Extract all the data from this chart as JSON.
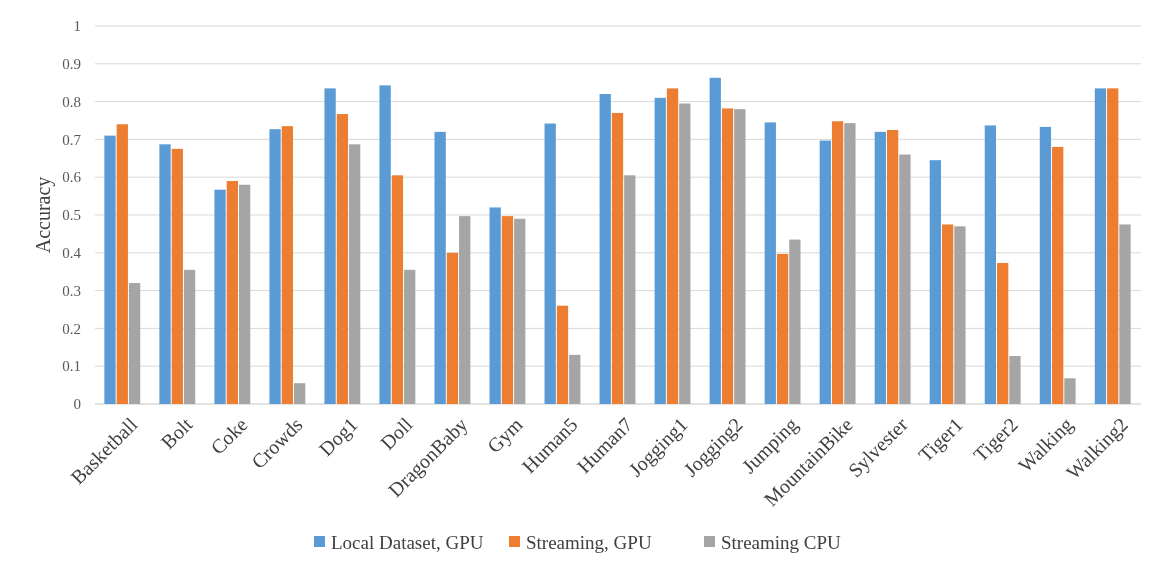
{
  "chart_data": {
    "type": "bar",
    "ylabel": "Accuracy",
    "categories": [
      "Basketball",
      "Bolt",
      "Coke",
      "Crowds",
      "Dog1",
      "Doll",
      "DragonBaby",
      "Gym",
      "Human5",
      "Human7",
      "Jogging1",
      "Jogging2",
      "Jumping",
      "MountainBike",
      "Sylvester",
      "Tiger1",
      "Tiger2",
      "Walking",
      "Walking2"
    ],
    "series": [
      {
        "name": "Local Dataset, GPU",
        "color": "#5b9bd5",
        "values": [
          0.71,
          0.687,
          0.567,
          0.727,
          0.835,
          0.843,
          0.72,
          0.52,
          0.742,
          0.82,
          0.81,
          0.863,
          0.745,
          0.697,
          0.72,
          0.645,
          0.737,
          0.733,
          0.835
        ]
      },
      {
        "name": "Streaming, GPU",
        "color": "#ed7d31",
        "values": [
          0.74,
          0.675,
          0.59,
          0.735,
          0.767,
          0.605,
          0.4,
          0.497,
          0.26,
          0.77,
          0.835,
          0.782,
          0.397,
          0.748,
          0.725,
          0.475,
          0.373,
          0.68,
          0.835
        ]
      },
      {
        "name": "Streaming CPU",
        "color": "#a5a5a5",
        "values": [
          0.32,
          0.355,
          0.58,
          0.055,
          0.687,
          0.355,
          0.497,
          0.49,
          0.13,
          0.605,
          0.795,
          0.78,
          0.435,
          0.743,
          0.66,
          0.47,
          0.127,
          0.068,
          0.475
        ]
      }
    ],
    "ylim": [
      0,
      1
    ],
    "yticks": [
      0,
      0.1,
      0.2,
      0.3,
      0.4,
      0.5,
      0.6,
      0.7,
      0.8,
      0.9,
      1
    ],
    "grid": "y",
    "legend": "bottom"
  }
}
